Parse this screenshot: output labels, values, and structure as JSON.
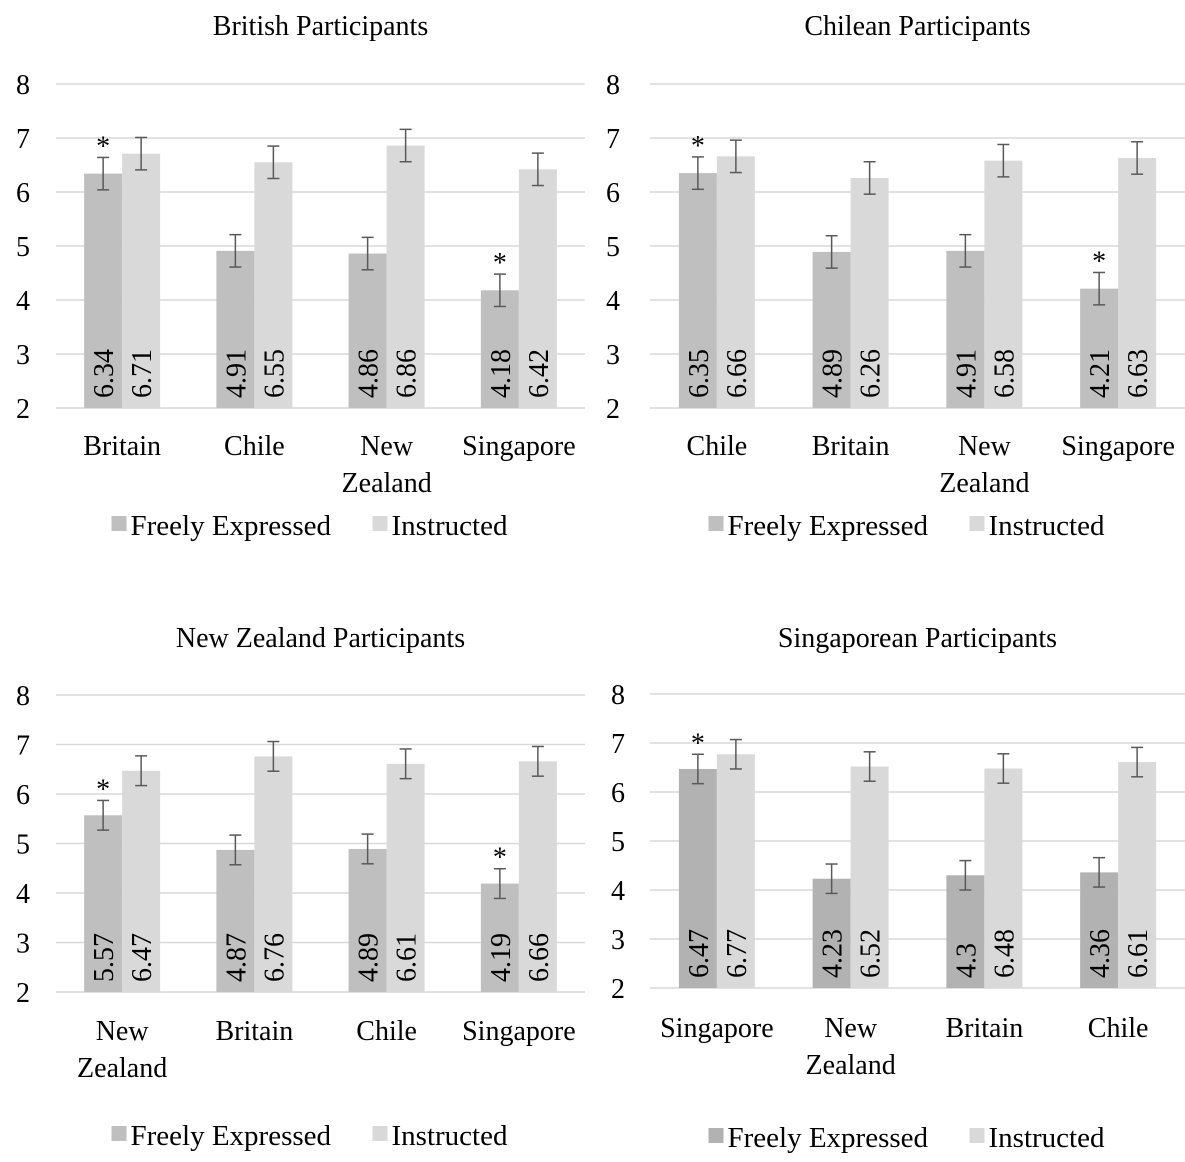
{
  "colors": {
    "freely": "#bfbfbf",
    "freely_singapore_panel": "#b2b2b2",
    "instructed": "#d9d9d9",
    "grid": "#d9d9d9",
    "error_bar": "#595959",
    "text": "#000000"
  },
  "chart_data": [
    {
      "type": "bar",
      "title": "British Participants",
      "ylim": [
        2,
        8
      ],
      "yticks": [
        "2",
        "3",
        "4",
        "5",
        "6",
        "7",
        "8"
      ],
      "categories": [
        [
          "Britain"
        ],
        [
          "Chile"
        ],
        [
          "New",
          "Zealand"
        ],
        [
          "Singapore"
        ]
      ],
      "series": [
        {
          "name": "Freely Expressed",
          "values": [
            6.34,
            4.91,
            4.86,
            4.18
          ],
          "errors": [
            0.3,
            0.3,
            0.3,
            0.3
          ],
          "labels": [
            "6.34",
            "4.91",
            "4.86",
            "4.18"
          ]
        },
        {
          "name": "Instructed",
          "values": [
            6.71,
            6.55,
            6.86,
            6.42
          ],
          "errors": [
            0.3,
            0.3,
            0.3,
            0.3
          ],
          "labels": [
            "6.71",
            "6.55",
            "6.86",
            "6.42"
          ]
        }
      ],
      "significant": [
        true,
        false,
        false,
        true
      ],
      "significance_marker": "*",
      "legend": [
        "Freely Expressed",
        "Instructed"
      ],
      "grid": true,
      "legend_position": "bottom"
    },
    {
      "type": "bar",
      "title": "Chilean Participants",
      "ylim": [
        2,
        8
      ],
      "yticks": [
        "2",
        "3",
        "4",
        "5",
        "6",
        "7",
        "8"
      ],
      "categories": [
        [
          "Chile"
        ],
        [
          "Britain"
        ],
        [
          "New",
          "Zealand"
        ],
        [
          "Singapore"
        ]
      ],
      "series": [
        {
          "name": "Freely Expressed",
          "values": [
            6.35,
            4.89,
            4.91,
            4.21
          ],
          "errors": [
            0.3,
            0.3,
            0.3,
            0.3
          ],
          "labels": [
            "6.35",
            "4.89",
            "4.91",
            "4.21"
          ]
        },
        {
          "name": "Instructed",
          "values": [
            6.66,
            6.26,
            6.58,
            6.63
          ],
          "errors": [
            0.3,
            0.3,
            0.3,
            0.3
          ],
          "labels": [
            "6.66",
            "6.26",
            "6.58",
            "6.63"
          ]
        }
      ],
      "significant": [
        true,
        false,
        false,
        true
      ],
      "significance_marker": "*",
      "legend": [
        "Freely Expressed",
        "Instructed"
      ],
      "grid": true,
      "legend_position": "bottom"
    },
    {
      "type": "bar",
      "title": "New Zealand Participants",
      "ylim": [
        2,
        8
      ],
      "yticks": [
        "2",
        "3",
        "4",
        "5",
        "6",
        "7",
        "8"
      ],
      "categories": [
        [
          "New",
          "Zealand"
        ],
        [
          "Britain"
        ],
        [
          "Chile"
        ],
        [
          "Singapore"
        ]
      ],
      "series": [
        {
          "name": "Freely Expressed",
          "values": [
            5.57,
            4.87,
            4.89,
            4.19
          ],
          "errors": [
            0.3,
            0.3,
            0.3,
            0.3
          ],
          "labels": [
            "5.57",
            "4.87",
            "4.89",
            "4.19"
          ]
        },
        {
          "name": "Instructed",
          "values": [
            6.47,
            6.76,
            6.61,
            6.66
          ],
          "errors": [
            0.3,
            0.3,
            0.3,
            0.3
          ],
          "labels": [
            "6.47",
            "6.76",
            "6.61",
            "6.66"
          ]
        }
      ],
      "significant": [
        true,
        false,
        false,
        true
      ],
      "significance_marker": "*",
      "legend": [
        "Freely Expressed",
        "Instructed"
      ],
      "grid": true,
      "legend_position": "bottom"
    },
    {
      "type": "bar",
      "title": "Singaporean Participants",
      "ylim": [
        2,
        8
      ],
      "yticks": [
        "2",
        "3",
        "4",
        "5",
        "6",
        "7",
        "8"
      ],
      "categories": [
        [
          "Singapore"
        ],
        [
          "New",
          "Zealand"
        ],
        [
          "Britain"
        ],
        [
          "Chile"
        ]
      ],
      "series": [
        {
          "name": "Freely Expressed",
          "values": [
            6.47,
            4.23,
            4.3,
            4.36
          ],
          "errors": [
            0.3,
            0.3,
            0.3,
            0.3
          ],
          "labels": [
            "6.47",
            "4.23",
            "4.3",
            "4.36"
          ]
        },
        {
          "name": "Instructed",
          "values": [
            6.77,
            6.52,
            6.48,
            6.61
          ],
          "errors": [
            0.3,
            0.3,
            0.3,
            0.3
          ],
          "labels": [
            "6.77",
            "6.52",
            "6.48",
            "6.61"
          ]
        }
      ],
      "significant": [
        true,
        false,
        false,
        false
      ],
      "significance_marker": "*",
      "legend": [
        "Freely Expressed",
        "Instructed"
      ],
      "grid": true,
      "legend_position": "bottom"
    }
  ]
}
